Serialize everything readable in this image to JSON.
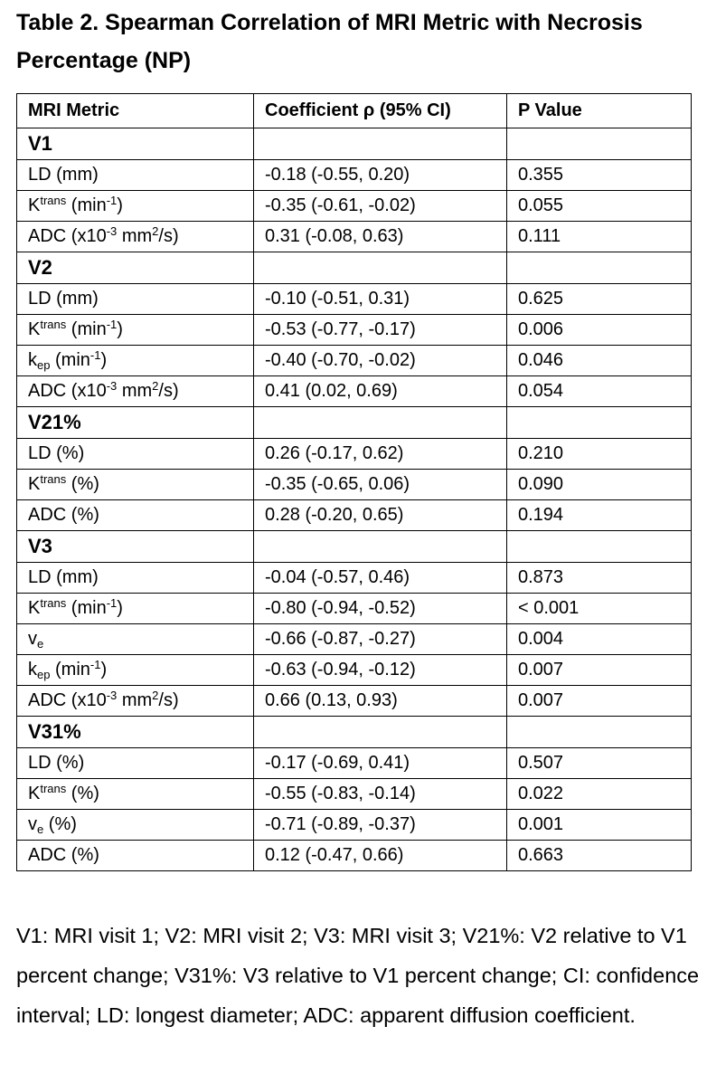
{
  "title": "Table 2.  Spearman Correlation of MRI Metric with Necrosis Percentage (NP)",
  "table": {
    "header": [
      "MRI Metric",
      "Coefficient ρ (95% CI)",
      "P Value"
    ],
    "rows": [
      {
        "group": "V1"
      },
      {
        "metric": [
          {
            "text": "LD (mm)"
          }
        ],
        "coefficient": "-0.18 (-0.55, 0.20)",
        "p": "0.355"
      },
      {
        "metric": [
          {
            "text": "K"
          },
          {
            "text": "trans",
            "pos": "sup"
          },
          {
            "text": " (min"
          },
          {
            "text": "-1",
            "pos": "sup"
          },
          {
            "text": ")"
          }
        ],
        "coefficient": "-0.35 (-0.61, -0.02)",
        "p": "0.055"
      },
      {
        "metric": [
          {
            "text": "ADC (x10"
          },
          {
            "text": "-3",
            "pos": "sup"
          },
          {
            "text": " mm"
          },
          {
            "text": "2",
            "pos": "sup"
          },
          {
            "text": "/s)"
          }
        ],
        "coefficient": "0.31 (-0.08, 0.63)",
        "p": "0.111"
      },
      {
        "group": "V2"
      },
      {
        "metric": [
          {
            "text": "LD (mm)"
          }
        ],
        "coefficient": "-0.10 (-0.51, 0.31)",
        "p": "0.625"
      },
      {
        "metric": [
          {
            "text": "K"
          },
          {
            "text": "trans",
            "pos": "sup"
          },
          {
            "text": " (min"
          },
          {
            "text": "-1",
            "pos": "sup"
          },
          {
            "text": ")"
          }
        ],
        "coefficient": "-0.53 (-0.77, -0.17)",
        "p": "0.006"
      },
      {
        "metric": [
          {
            "text": "k"
          },
          {
            "text": "ep",
            "pos": "sub"
          },
          {
            "text": " (min"
          },
          {
            "text": "-1",
            "pos": "sup"
          },
          {
            "text": ")"
          }
        ],
        "coefficient": "-0.40 (-0.70, -0.02)",
        "p": "0.046"
      },
      {
        "metric": [
          {
            "text": "ADC (x10"
          },
          {
            "text": "-3",
            "pos": "sup"
          },
          {
            "text": " mm"
          },
          {
            "text": "2",
            "pos": "sup"
          },
          {
            "text": "/s)"
          }
        ],
        "coefficient": "0.41 (0.02, 0.69)",
        "p": "0.054"
      },
      {
        "group": "V21%"
      },
      {
        "metric": [
          {
            "text": "LD (%)"
          }
        ],
        "coefficient": "0.26 (-0.17, 0.62)",
        "p": "0.210"
      },
      {
        "metric": [
          {
            "text": "K"
          },
          {
            "text": "trans",
            "pos": "sup"
          },
          {
            "text": " (%)"
          }
        ],
        "coefficient": "-0.35 (-0.65, 0.06)",
        "p": "0.090"
      },
      {
        "metric": [
          {
            "text": "ADC (%)"
          }
        ],
        "coefficient": "0.28 (-0.20, 0.65)",
        "p": "0.194"
      },
      {
        "group": "V3"
      },
      {
        "metric": [
          {
            "text": "LD (mm)"
          }
        ],
        "coefficient": "-0.04 (-0.57, 0.46)",
        "p": "0.873"
      },
      {
        "metric": [
          {
            "text": "K"
          },
          {
            "text": "trans",
            "pos": "sup"
          },
          {
            "text": " (min"
          },
          {
            "text": "-1",
            "pos": "sup"
          },
          {
            "text": ")"
          }
        ],
        "coefficient": "-0.80 (-0.94, -0.52)",
        "p": "< 0.001"
      },
      {
        "metric": [
          {
            "text": "v"
          },
          {
            "text": "e",
            "pos": "sub"
          }
        ],
        "coefficient": "-0.66 (-0.87, -0.27)",
        "p": "0.004"
      },
      {
        "metric": [
          {
            "text": "k"
          },
          {
            "text": "ep",
            "pos": "sub"
          },
          {
            "text": " (min"
          },
          {
            "text": "-1",
            "pos": "sup"
          },
          {
            "text": ")"
          }
        ],
        "coefficient": "-0.63 (-0.94, -0.12)",
        "p": "0.007"
      },
      {
        "metric": [
          {
            "text": "ADC (x10"
          },
          {
            "text": "-3",
            "pos": "sup"
          },
          {
            "text": " mm"
          },
          {
            "text": "2",
            "pos": "sup"
          },
          {
            "text": "/s)"
          }
        ],
        "coefficient": "0.66 (0.13, 0.93)",
        "p": "0.007"
      },
      {
        "group": "V31%"
      },
      {
        "metric": [
          {
            "text": "LD (%)"
          }
        ],
        "coefficient": "-0.17 (-0.69, 0.41)",
        "p": "0.507"
      },
      {
        "metric": [
          {
            "text": "K"
          },
          {
            "text": "trans",
            "pos": "sup"
          },
          {
            "text": " (%)"
          }
        ],
        "coefficient": "-0.55 (-0.83, -0.14)",
        "p": "0.022"
      },
      {
        "metric": [
          {
            "text": "v"
          },
          {
            "text": "e",
            "pos": "sub"
          },
          {
            "text": " (%)"
          }
        ],
        "coefficient": "-0.71 (-0.89, -0.37)",
        "p": "0.001"
      },
      {
        "metric": [
          {
            "text": "ADC (%)"
          }
        ],
        "coefficient": "0.12 (-0.47, 0.66)",
        "p": "0.663"
      }
    ]
  },
  "note": "V1: MRI visit 1; V2: MRI visit 2; V3: MRI visit 3; V21%: V2 relative to V1 percent change; V31%: V3 relative to V1 percent change; CI: confidence interval; LD: longest diameter; ADC: apparent diffusion coefficient."
}
